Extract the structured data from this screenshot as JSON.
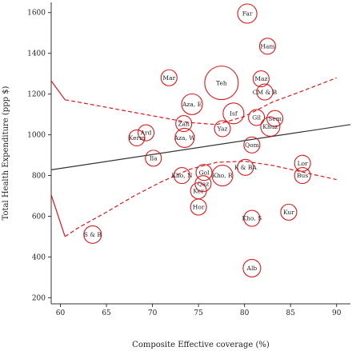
{
  "chart_data": {
    "type": "scatter",
    "title": "",
    "xlabel": "Composite Effective coverage (%)",
    "ylabel": "Total Health Expenditure (ppp $)",
    "xlim": [
      59,
      91.5
    ],
    "ylim": [
      170,
      1650
    ],
    "xticks": [
      60,
      65,
      70,
      75,
      80,
      85,
      90
    ],
    "yticks": [
      200,
      400,
      600,
      800,
      1000,
      1200,
      1400,
      1600
    ],
    "grid": false,
    "colors": {
      "points": "#d7191c",
      "fit": "#333333",
      "ci_lower": "#d7191c",
      "ci_upper": "#d7191c"
    },
    "points": [
      {
        "label": "Far",
        "x": 80.3,
        "y": 1595,
        "size": 12
      },
      {
        "label": "Ham",
        "x": 82.5,
        "y": 1435,
        "size": 10
      },
      {
        "label": "Mar",
        "x": 71.8,
        "y": 1280,
        "size": 10
      },
      {
        "label": "Teh",
        "x": 77.5,
        "y": 1255,
        "size": 21
      },
      {
        "label": "Maz",
        "x": 81.8,
        "y": 1275,
        "size": 10
      },
      {
        "label": "CM & B",
        "x": 82.2,
        "y": 1210,
        "size": 10
      },
      {
        "label": "Aza, E",
        "x": 74.3,
        "y": 1150,
        "size": 13
      },
      {
        "label": "Isf",
        "x": 78.8,
        "y": 1105,
        "size": 13
      },
      {
        "label": "Gil",
        "x": 81.3,
        "y": 1085,
        "size": 10
      },
      {
        "label": "Sem",
        "x": 83.3,
        "y": 1080,
        "size": 10
      },
      {
        "label": "Khuz",
        "x": 82.8,
        "y": 1040,
        "size": 12
      },
      {
        "label": "Zan",
        "x": 73.4,
        "y": 1055,
        "size": 10
      },
      {
        "label": "Yaz",
        "x": 77.6,
        "y": 1030,
        "size": 10
      },
      {
        "label": "Ard",
        "x": 69.3,
        "y": 1010,
        "size": 10
      },
      {
        "label": "Kerm",
        "x": 68.3,
        "y": 985,
        "size": 10
      },
      {
        "label": "Aza, W",
        "x": 73.5,
        "y": 985,
        "size": 12
      },
      {
        "label": "Qom",
        "x": 80.8,
        "y": 950,
        "size": 10
      },
      {
        "label": "Ila",
        "x": 70.1,
        "y": 885,
        "size": 10
      },
      {
        "label": "Lor",
        "x": 86.3,
        "y": 860,
        "size": 10
      },
      {
        "label": "Kho, N",
        "x": 73.2,
        "y": 800,
        "size": 10
      },
      {
        "label": "Gol",
        "x": 75.6,
        "y": 815,
        "size": 10
      },
      {
        "label": "Kho, R",
        "x": 77.6,
        "y": 800,
        "size": 13
      },
      {
        "label": "K & BA",
        "x": 80.1,
        "y": 840,
        "size": 10
      },
      {
        "label": "Bus",
        "x": 86.3,
        "y": 800,
        "size": 10
      },
      {
        "label": "Qaz",
        "x": 75.5,
        "y": 760,
        "size": 10
      },
      {
        "label": "Ker",
        "x": 75.0,
        "y": 725,
        "size": 10
      },
      {
        "label": "Hor",
        "x": 75.0,
        "y": 645,
        "size": 10
      },
      {
        "label": "Kur",
        "x": 84.8,
        "y": 620,
        "size": 10
      },
      {
        "label": "Kho, S",
        "x": 80.8,
        "y": 590,
        "size": 10
      },
      {
        "label": "S & B",
        "x": 63.5,
        "y": 510,
        "size": 11
      },
      {
        "label": "Alb",
        "x": 80.8,
        "y": 345,
        "size": 11
      }
    ],
    "fit_line": {
      "x": [
        59,
        91.5
      ],
      "y": [
        828,
        1050
      ]
    },
    "ci_upper": {
      "x": [
        59,
        60.5,
        62,
        65,
        68,
        71,
        74,
        77,
        80,
        83,
        86,
        89,
        90
      ],
      "y": [
        1265,
        1172,
        1160,
        1135,
        1110,
        1085,
        1060,
        1050,
        1090,
        1160,
        1210,
        1262,
        1280
      ]
    },
    "ci_lower": {
      "x": [
        59,
        60.5,
        62,
        65,
        68,
        71,
        74,
        77,
        80,
        83,
        86,
        89,
        90
      ],
      "y": [
        705,
        500,
        545,
        620,
        700,
        770,
        830,
        865,
        870,
        850,
        820,
        790,
        780
      ]
    }
  }
}
